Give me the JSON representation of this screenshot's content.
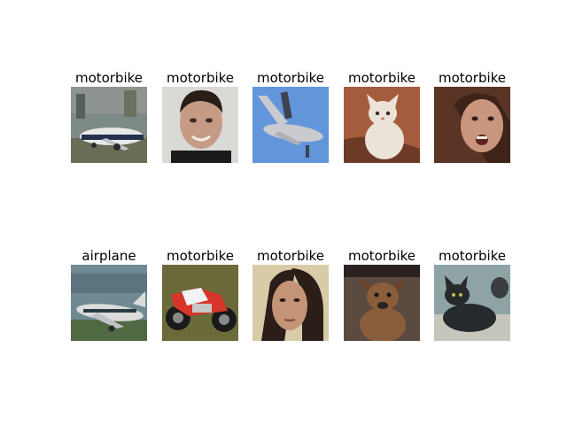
{
  "panels": [
    {
      "label": "motorbike",
      "subject": "airplane-photo",
      "colors": {
        "sky": "#7d8a86",
        "ground": "#6a6d55",
        "main": "#e8e8e8",
        "accent": "#24304d"
      }
    },
    {
      "label": "motorbike",
      "subject": "face-photo",
      "colors": {
        "bg": "#d9d9d6",
        "skin": "#c69b86",
        "hair": "#2a1d17",
        "shirt": "#1b1b1b"
      }
    },
    {
      "label": "motorbike",
      "subject": "airplane-photo",
      "colors": {
        "sky": "#5d8fd6",
        "main": "#c9cbd0",
        "accent": "#3d4250"
      }
    },
    {
      "label": "motorbike",
      "subject": "cat-photo",
      "colors": {
        "bg": "#a55c3c",
        "fur": "#ebe3d8",
        "accent": "#6d3a25"
      }
    },
    {
      "label": "motorbike",
      "subject": "face-photo",
      "colors": {
        "bg": "#5a3526",
        "skin": "#c9957c",
        "hair": "#3d2318"
      }
    },
    {
      "label": "airplane",
      "subject": "airplane-photo",
      "colors": {
        "sky": "#6f8a92",
        "ground": "#4f6a42",
        "main": "#dcdcdc",
        "accent": "#2b3a45"
      }
    },
    {
      "label": "motorbike",
      "subject": "motorbike-photo",
      "colors": {
        "bg": "#6b6a3b",
        "body": "#d8352a",
        "wheel": "#1a1a1a",
        "chrome": "#c8c8c8"
      }
    },
    {
      "label": "motorbike",
      "subject": "face-photo",
      "colors": {
        "bg": "#d8cba8",
        "skin": "#c49477",
        "hair": "#2b1d18"
      }
    },
    {
      "label": "motorbike",
      "subject": "dog-photo",
      "colors": {
        "bg": "#5a4a3f",
        "fur": "#8a5d3b",
        "accent": "#2a2220"
      }
    },
    {
      "label": "motorbike",
      "subject": "cat-photo",
      "colors": {
        "bg": "#8fa3a4",
        "fur": "#262a2c",
        "accent": "#c6c6bd"
      }
    }
  ]
}
